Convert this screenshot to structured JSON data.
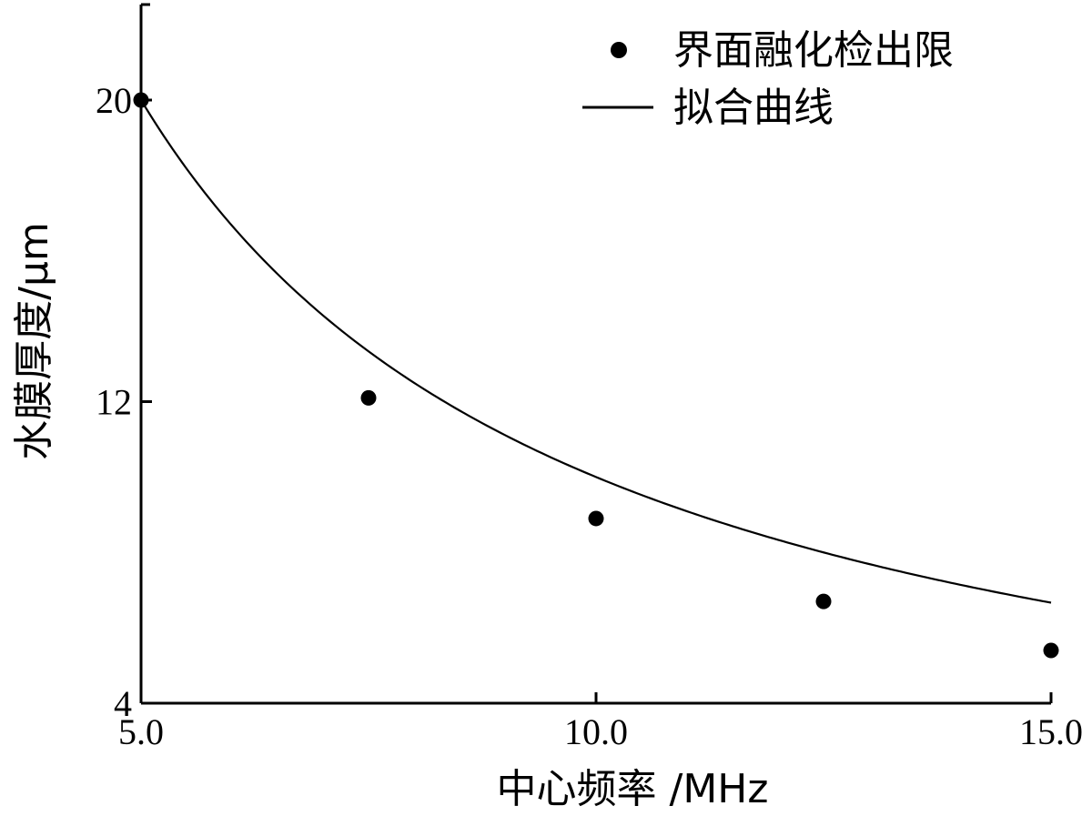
{
  "chart_data": {
    "type": "scatter",
    "xlabel": "中心频率 /MHz",
    "ylabel": "水膜厚度/μm",
    "xlim": [
      5.0,
      15.0
    ],
    "ylim": [
      4,
      20
    ],
    "x_ticks": [
      "5.0",
      "10.0",
      "15.0"
    ],
    "y_ticks": [
      "4",
      "12",
      "20"
    ],
    "legend_position": "top-right",
    "grid": false,
    "series": [
      {
        "name": "界面融化检出限",
        "type": "scatter",
        "color": "#000000",
        "points": [
          {
            "x": 5.0,
            "y": 20.0
          },
          {
            "x": 7.5,
            "y": 12.1
          },
          {
            "x": 10.0,
            "y": 8.9
          },
          {
            "x": 12.5,
            "y": 6.7
          },
          {
            "x": 15.0,
            "y": 5.4
          }
        ]
      },
      {
        "name": "拟合曲线",
        "type": "line",
        "color": "#000000",
        "fit": "power",
        "coefficient": 100,
        "exponent": -1
      }
    ]
  }
}
